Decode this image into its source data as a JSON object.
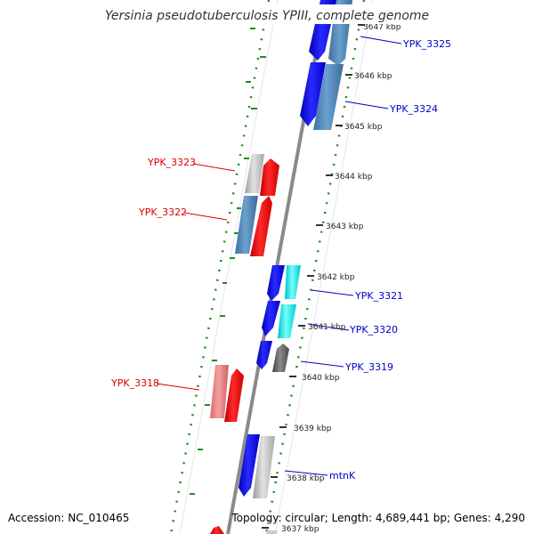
{
  "title": "Yersinia pseudotuberculosis YPIII, complete genome",
  "accession_text": "Accession: NC_010465",
  "topology_text": "Topology: circular; Length: 4,689,441 bp; Genes: 4,290",
  "ticks": [
    {
      "label": "3647 kbp",
      "pos": 3647
    },
    {
      "label": "3646 kbp",
      "pos": 3646
    },
    {
      "label": "3645 kbp",
      "pos": 3645
    },
    {
      "label": "3644 kbp",
      "pos": 3644
    },
    {
      "label": "3643 kbp",
      "pos": 3643
    },
    {
      "label": "3642 kbp",
      "pos": 3642
    },
    {
      "label": "3641 kbp",
      "pos": 3641
    },
    {
      "label": "3640 kbp",
      "pos": 3640
    },
    {
      "label": "3639 kbp",
      "pos": 3639
    },
    {
      "label": "3638 kbp",
      "pos": 3638
    },
    {
      "label": "3637 kbp",
      "pos": 3637
    }
  ],
  "gene_labels": {
    "ypk_3325": "YPK_3325",
    "ypk_3324": "YPK_3324",
    "ypk_3323": "YPK_3323",
    "ypk_3322": "YPK_3322",
    "ypk_3321": "YPK_3321",
    "ypk_3320": "YPK_3320",
    "ypk_3319": "YPK_3319",
    "ypk_3318": "YPK_3318",
    "mtnk": "mtnK"
  },
  "colors": {
    "forward_label": "#0000cc",
    "reverse_label": "#dd0000",
    "backbone": "#808080",
    "gc_dots": "#228b22"
  }
}
